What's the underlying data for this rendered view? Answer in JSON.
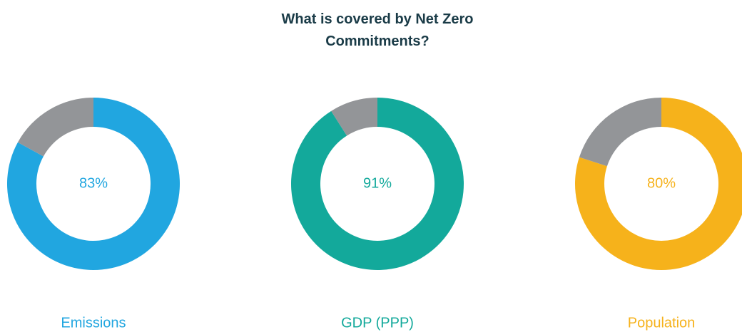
{
  "title": "What is covered by Net Zero Commitments?",
  "chart_data": [
    {
      "type": "pie",
      "title": "Emissions",
      "values": [
        83,
        17
      ],
      "value_labels": [
        "83%",
        null
      ],
      "colors": [
        "#21a6e0",
        "#939598"
      ]
    },
    {
      "type": "pie",
      "title": "GDP (PPP)",
      "values": [
        91,
        9
      ],
      "value_labels": [
        "91%",
        null
      ],
      "colors": [
        "#13a99b",
        "#939598"
      ]
    },
    {
      "type": "pie",
      "title": "Population",
      "values": [
        80,
        20
      ],
      "value_labels": [
        "80%",
        null
      ],
      "colors": [
        "#f6b21b",
        "#939598"
      ]
    }
  ]
}
